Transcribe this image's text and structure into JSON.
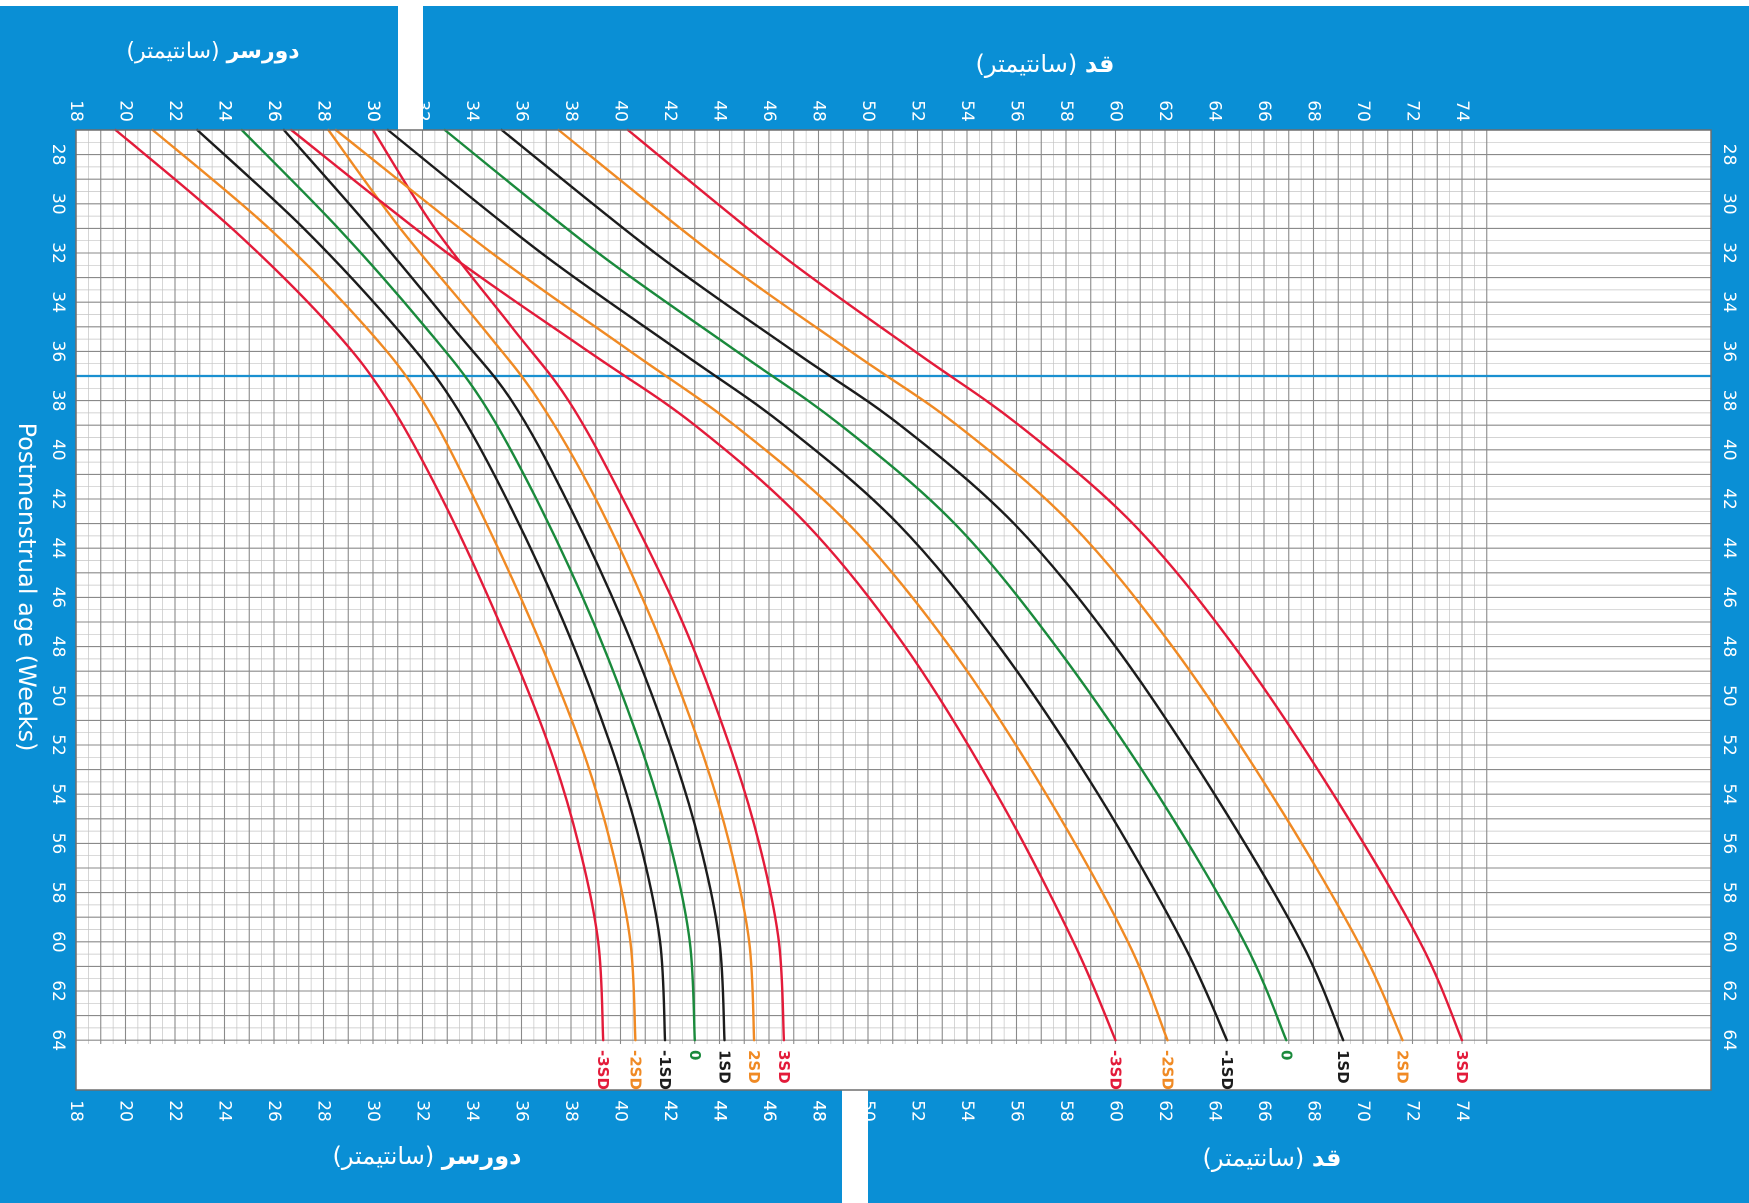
{
  "chart_data": {
    "type": "line",
    "ylabel": "Postmenstrual age (Weeks)",
    "ylim": [
      27,
      64
    ],
    "y_ticks": [
      28,
      30,
      32,
      34,
      36,
      38,
      40,
      42,
      44,
      46,
      48,
      50,
      52,
      54,
      56,
      58,
      60,
      62,
      64
    ],
    "reference_line_y": 37,
    "xlim": [
      18,
      75
    ],
    "colors": {
      "background_panel": "#0a8fd5",
      "reference_line": "#1a90d0",
      "sd3": "#e31b3a",
      "sd2": "#f08a24",
      "sd1": "#1c1c1c",
      "median": "#1a8a3c"
    },
    "head_circumference": {
      "title_bold": "دورسر",
      "title_unit": "(سانتیمتر)",
      "x_ticks_top": [
        18,
        20,
        22,
        24,
        26,
        28,
        30
      ],
      "x_ticks_bottom": [
        18,
        20,
        22,
        24,
        26,
        28,
        30,
        32,
        34,
        36,
        38,
        40,
        42,
        44,
        46,
        48
      ],
      "series": [
        {
          "name": "-3SD",
          "color": "#e31b3a",
          "x": [
            19.6,
            24.3,
            28.3,
            30.6,
            32.8,
            35.1,
            37.1,
            38.3,
            39.1,
            39.3
          ],
          "y": [
            27,
            31,
            35,
            38,
            42,
            47,
            52,
            56,
            60,
            64
          ]
        },
        {
          "name": "-2SD",
          "color": "#f08a24",
          "x": [
            21.1,
            25.8,
            29.7,
            32.0,
            34.1,
            36.4,
            38.4,
            39.6,
            40.4,
            40.6
          ],
          "y": [
            27,
            31,
            35,
            38,
            42,
            47,
            52,
            56,
            60,
            64
          ]
        },
        {
          "name": "-1SD",
          "color": "#1c1c1c",
          "x": [
            22.9,
            27.2,
            30.9,
            33.2,
            35.4,
            37.7,
            39.6,
            40.8,
            41.6,
            41.8
          ],
          "y": [
            27,
            31,
            35,
            38,
            42,
            47,
            52,
            56,
            60,
            64
          ]
        },
        {
          "name": "0",
          "color": "#1a8a3c",
          "x": [
            24.7,
            28.6,
            32.1,
            34.4,
            36.6,
            38.9,
            40.8,
            42.0,
            42.8,
            43.0
          ],
          "y": [
            27,
            31,
            35,
            38,
            42,
            47,
            52,
            56,
            60,
            64
          ]
        },
        {
          "name": "1SD",
          "color": "#1c1c1c",
          "x": [
            26.4,
            29.9,
            33.2,
            35.6,
            37.8,
            40.1,
            42.0,
            43.2,
            44.0,
            44.2
          ],
          "y": [
            27,
            31,
            35,
            38,
            42,
            47,
            52,
            56,
            60,
            64
          ]
        },
        {
          "name": "2SD",
          "color": "#f08a24",
          "x": [
            28.2,
            31.1,
            34.4,
            36.7,
            39.0,
            41.3,
            43.2,
            44.4,
            45.2,
            45.4
          ],
          "y": [
            27,
            31,
            35,
            38,
            42,
            47,
            52,
            56,
            60,
            64
          ]
        },
        {
          "name": "3SD",
          "color": "#e31b3a",
          "x": [
            30.0,
            32.5,
            35.6,
            37.9,
            40.1,
            42.5,
            44.4,
            45.6,
            46.4,
            46.6
          ],
          "y": [
            27,
            31,
            35,
            38,
            42,
            47,
            52,
            56,
            60,
            64
          ]
        }
      ]
    },
    "length": {
      "title_bold": "قد",
      "title_unit": "(سانتیمتر)",
      "x_ticks_top": [
        24,
        26,
        28,
        30,
        32,
        34,
        36,
        38,
        40,
        42,
        44,
        46,
        48,
        50,
        52,
        54,
        56,
        58,
        60,
        62,
        64,
        66,
        68,
        70,
        72,
        74
      ],
      "x_ticks_bottom": [
        42,
        44,
        46,
        48,
        50,
        52,
        54,
        56,
        58,
        60,
        62,
        64,
        66,
        68,
        70,
        72,
        74
      ],
      "series": [
        {
          "name": "-3SD",
          "color": "#e31b3a",
          "x": [
            26.7,
            33.0,
            38.7,
            43.0,
            47.5,
            51.5,
            55.2,
            58.3,
            60.0
          ],
          "y": [
            27,
            32,
            36,
            39,
            43,
            48,
            54,
            60,
            64
          ]
        },
        {
          "name": "-2SD",
          "color": "#f08a24",
          "x": [
            28.5,
            34.8,
            40.4,
            44.6,
            49.2,
            53.3,
            57.2,
            60.5,
            62.1
          ],
          "y": [
            27,
            32,
            36,
            39,
            43,
            48,
            54,
            60,
            64
          ]
        },
        {
          "name": "-1SD",
          "color": "#1c1c1c",
          "x": [
            30.6,
            36.8,
            42.4,
            46.6,
            51.2,
            55.3,
            59.3,
            62.7,
            64.5
          ],
          "y": [
            27,
            32,
            36,
            39,
            43,
            48,
            54,
            60,
            64
          ]
        },
        {
          "name": "0",
          "color": "#1a8a3c",
          "x": [
            32.9,
            39.1,
            44.7,
            48.9,
            53.5,
            57.6,
            61.7,
            65.2,
            66.9
          ],
          "y": [
            27,
            32,
            36,
            39,
            43,
            48,
            54,
            60,
            64
          ]
        },
        {
          "name": "1SD",
          "color": "#1c1c1c",
          "x": [
            35.2,
            41.4,
            47.0,
            51.3,
            55.9,
            60.0,
            64.0,
            67.5,
            69.2
          ],
          "y": [
            27,
            32,
            36,
            39,
            43,
            48,
            54,
            60,
            64
          ]
        },
        {
          "name": "2SD",
          "color": "#f08a24",
          "x": [
            37.5,
            43.7,
            49.3,
            53.6,
            58.2,
            62.3,
            66.3,
            69.8,
            71.6
          ],
          "y": [
            27,
            32,
            36,
            39,
            43,
            48,
            54,
            60,
            64
          ]
        },
        {
          "name": "3SD",
          "color": "#e31b3a",
          "x": [
            40.3,
            46.4,
            51.9,
            56.1,
            60.7,
            64.8,
            68.8,
            72.3,
            74.0
          ],
          "y": [
            27,
            32,
            36,
            39,
            43,
            48,
            54,
            60,
            64
          ]
        }
      ]
    }
  }
}
